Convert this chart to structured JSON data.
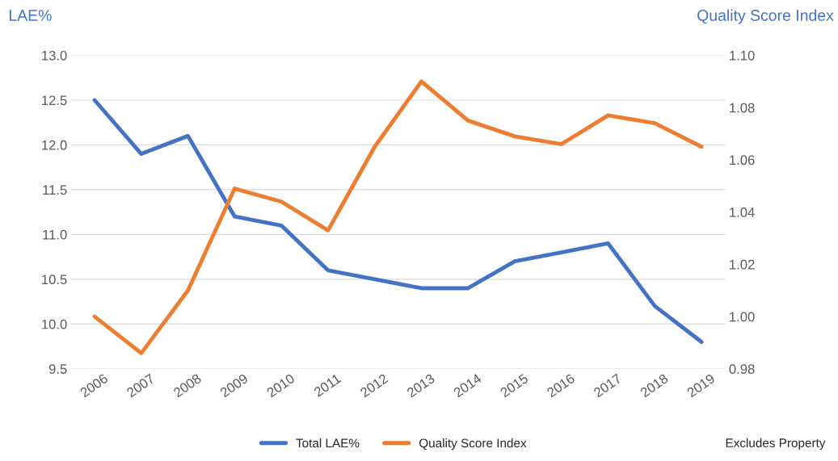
{
  "chart_data": {
    "type": "line",
    "ylabel": "LAE%",
    "y2label": "Quality Score Index",
    "categories": [
      "2006",
      "2007",
      "2008",
      "2009",
      "2010",
      "2011",
      "2012",
      "2013",
      "2014",
      "2015",
      "2016",
      "2017",
      "2018",
      "2019"
    ],
    "series": [
      {
        "name": "Total LAE%",
        "color": "#4472c4",
        "values": [
          12.5,
          11.9,
          12.1,
          11.2,
          11.1,
          10.6,
          10.5,
          10.4,
          10.4,
          10.7,
          10.8,
          10.9,
          10.2,
          9.8
        ]
      },
      {
        "name": "Quality Score Index",
        "color": "#ed7d31",
        "axis": "y2",
        "values": [
          1.0,
          0.986,
          1.01,
          1.049,
          1.044,
          1.033,
          1.065,
          1.09,
          1.075,
          1.069,
          1.066,
          1.077,
          1.074,
          1.065
        ]
      }
    ],
    "ylim": [
      9.5,
      13.0
    ],
    "yticks": [
      {
        "value": 9.5,
        "label": "9.5"
      },
      {
        "value": 10,
        "label": "10.0"
      },
      {
        "value": 10.5,
        "label": "10.5"
      },
      {
        "value": 11,
        "label": "11.0"
      },
      {
        "value": 11.5,
        "label": "11.5"
      },
      {
        "value": 12,
        "label": "12.0"
      },
      {
        "value": 12.5,
        "label": "12.5"
      },
      {
        "value": 13,
        "label": "13.0"
      }
    ],
    "y2lim": [
      0.98,
      1.1
    ],
    "y2ticks": [
      {
        "value": 0.98,
        "label": "0.98"
      },
      {
        "value": 1.0,
        "label": "1.00"
      },
      {
        "value": 1.02,
        "label": "1.02"
      },
      {
        "value": 1.04,
        "label": "1.04"
      },
      {
        "value": 1.06,
        "label": "1.06"
      },
      {
        "value": 1.08,
        "label": "1.08"
      },
      {
        "value": 1.1,
        "label": "1.10"
      }
    ],
    "grid": "y",
    "legend": "bottom",
    "marker": "none",
    "line_style": "solid",
    "annotations": [
      "Excludes Property"
    ]
  }
}
